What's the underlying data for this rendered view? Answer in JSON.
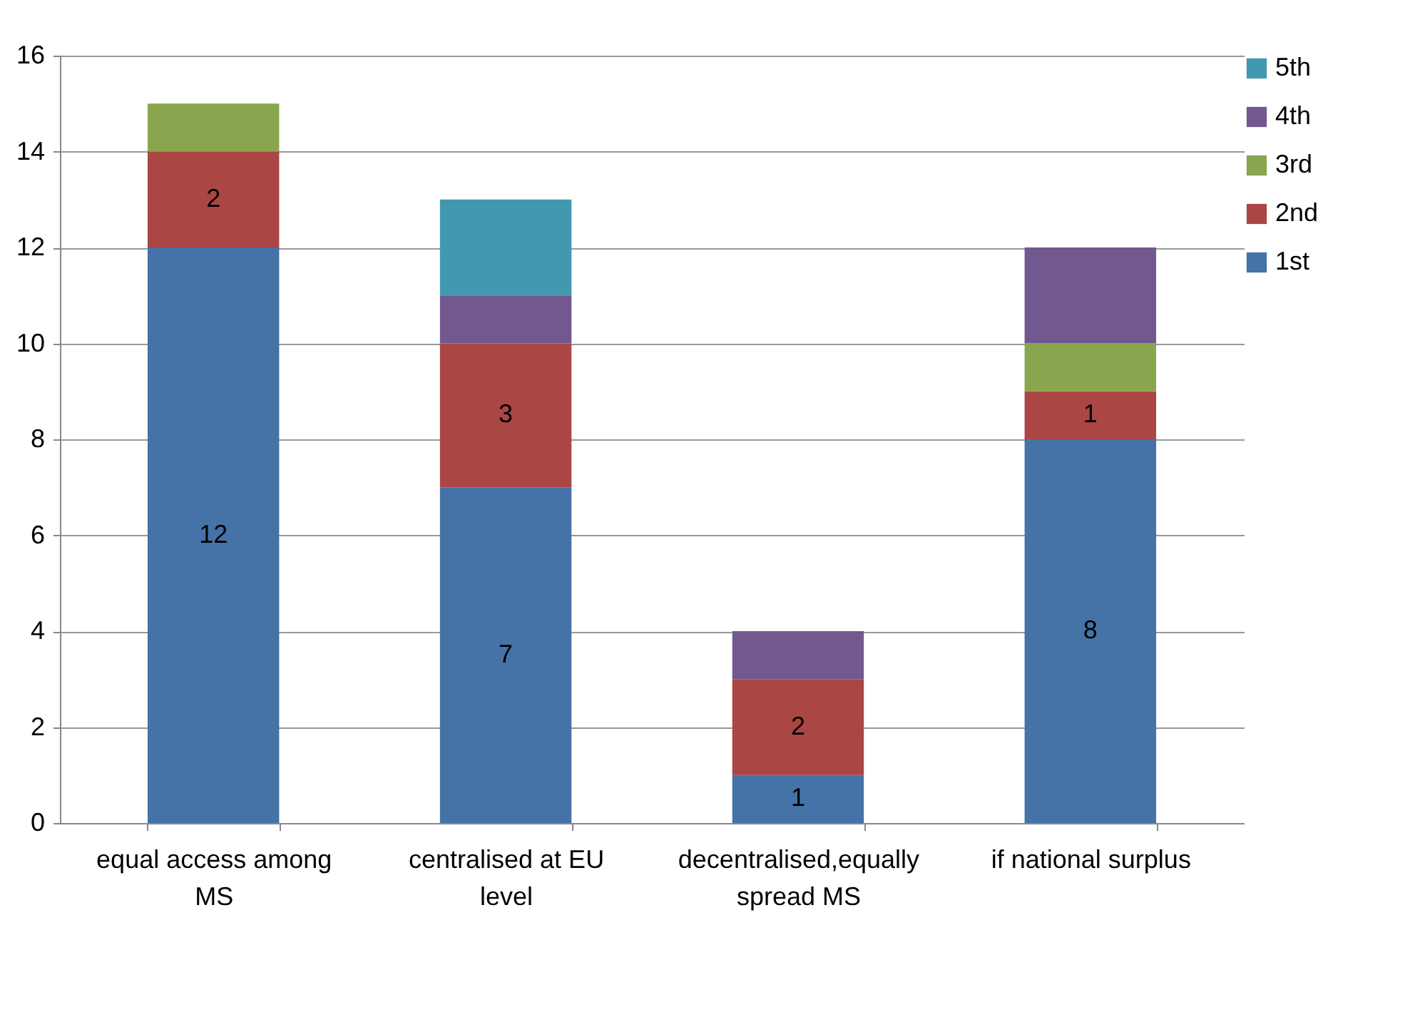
{
  "chart_data": {
    "type": "bar",
    "stacked": true,
    "categories": [
      "equal access among MS",
      "centralised at EU level",
      "decentralised,equally spread MS",
      "if national surplus"
    ],
    "series": [
      {
        "name": "1st",
        "color": "#4572a7",
        "values": [
          12,
          7,
          1,
          8
        ],
        "value_labels": [
          "12",
          "7",
          "1",
          "8"
        ]
      },
      {
        "name": "2nd",
        "color": "#aa4643",
        "values": [
          2,
          3,
          2,
          1
        ],
        "value_labels": [
          "2",
          "3",
          "2",
          "1"
        ]
      },
      {
        "name": "3rd",
        "color": "#89a54e",
        "values": [
          1,
          null,
          null,
          1
        ],
        "value_labels": [
          null,
          null,
          null,
          null
        ]
      },
      {
        "name": "4th",
        "color": "#71588f",
        "values": [
          null,
          1,
          1,
          2
        ],
        "value_labels": [
          null,
          null,
          null,
          null
        ]
      },
      {
        "name": "5th",
        "color": "#4198af",
        "values": [
          null,
          2,
          null,
          null
        ],
        "value_labels": [
          null,
          null,
          null,
          null
        ]
      }
    ],
    "ylim": [
      0,
      16
    ],
    "yticks": [
      0,
      2,
      4,
      6,
      8,
      10,
      12,
      14,
      16
    ],
    "grid": "y",
    "legend": "right"
  }
}
